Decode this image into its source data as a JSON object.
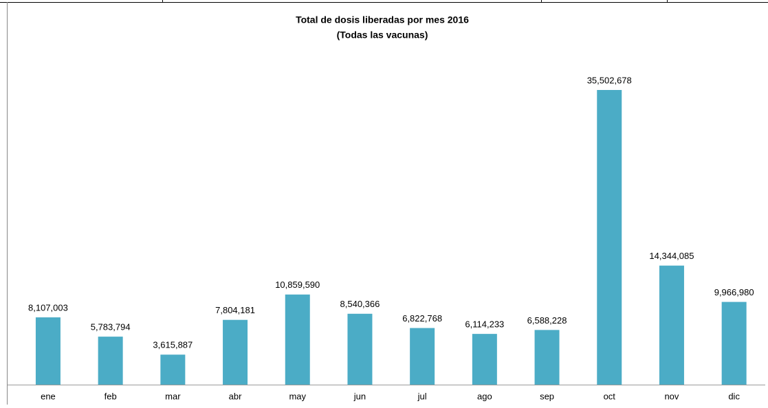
{
  "chart_data": {
    "type": "bar",
    "title": "Total de dosis liberadas por mes 2016",
    "subtitle": "(Todas las vacunas)",
    "categories": [
      "ene",
      "feb",
      "mar",
      "abr",
      "may",
      "jun",
      "jul",
      "ago",
      "sep",
      "oct",
      "nov",
      "dic"
    ],
    "values": [
      8107003,
      5783794,
      3615887,
      7804181,
      10859590,
      8540366,
      6822768,
      6114233,
      6588228,
      35502678,
      14344085,
      9966980
    ],
    "value_labels": [
      "8,107,003",
      "5,783,794",
      "3,615,887",
      "7,804,181",
      "10,859,590",
      "8,540,366",
      "6,822,768",
      "6,114,233",
      "6,588,228",
      "35,502,678",
      "14,344,085",
      "9,966,980"
    ],
    "color": "#4bacc6"
  }
}
